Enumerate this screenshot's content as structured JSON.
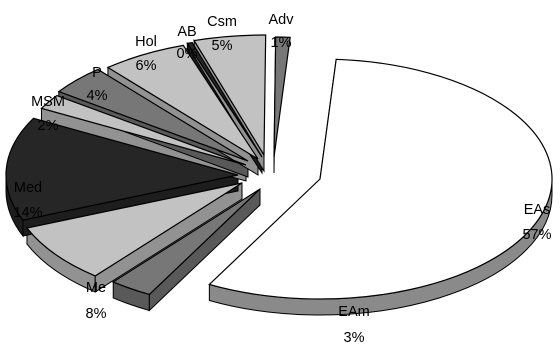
{
  "chart_data": {
    "type": "pie",
    "style": "exploded-3d",
    "title": "",
    "slices": [
      {
        "label": "EAs",
        "value": 57,
        "display": "57%",
        "color": "#ffffff"
      },
      {
        "label": "EAm",
        "value": 3,
        "display": "3%",
        "color": "#777777"
      },
      {
        "label": "Me",
        "value": 8,
        "display": "8%",
        "color": "#c2c2c2"
      },
      {
        "label": "Med",
        "value": 14,
        "display": "14%",
        "color": "#262626"
      },
      {
        "label": "MSM",
        "value": 2,
        "display": "2%",
        "color": "#c2c2c2"
      },
      {
        "label": "P",
        "value": 4,
        "display": "4%",
        "color": "#777777"
      },
      {
        "label": "Hol",
        "value": 6,
        "display": "6%",
        "color": "#c2c2c2"
      },
      {
        "label": "AB",
        "value": 0,
        "display": "0%",
        "color": "#262626"
      },
      {
        "label": "Csm",
        "value": 5,
        "display": "5%",
        "color": "#c2c2c2"
      },
      {
        "label": "Adv",
        "value": 1,
        "display": "1%",
        "color": "#777777"
      }
    ],
    "legend": "none"
  }
}
